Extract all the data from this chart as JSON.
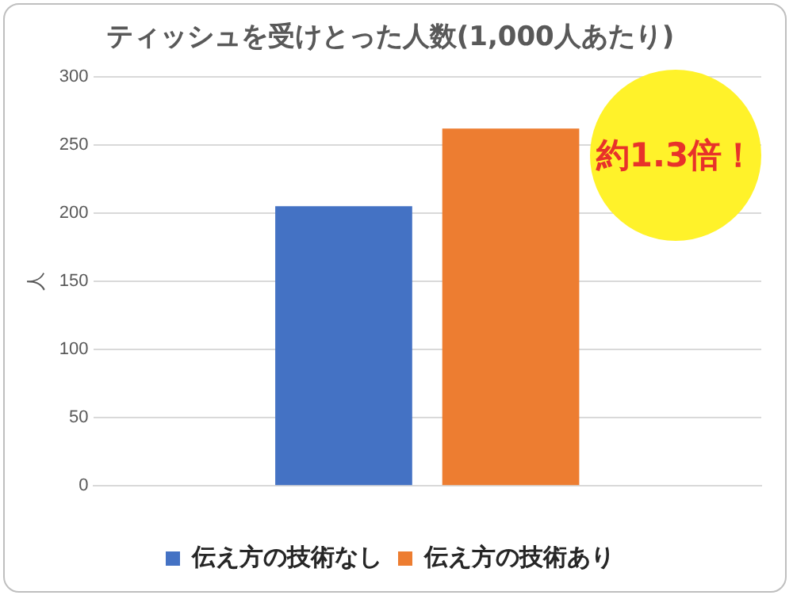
{
  "chart_data": {
    "type": "bar",
    "title": "ティッシュを受けとった人数(1,000人あたり)",
    "ylabel": "人",
    "categories": [
      null
    ],
    "series": [
      {
        "name": "伝え方の技術なし",
        "color": "#4472c4",
        "values": [
          205
        ]
      },
      {
        "name": "伝え方の技術あり",
        "color": "#ed7d31",
        "values": [
          262
        ]
      }
    ],
    "ylim": [
      0,
      300
    ],
    "yticks": [
      0,
      50,
      100,
      150,
      200,
      250,
      300
    ],
    "grid": "y",
    "legend": "bottom",
    "annotations": [
      "約1.3倍！"
    ]
  }
}
